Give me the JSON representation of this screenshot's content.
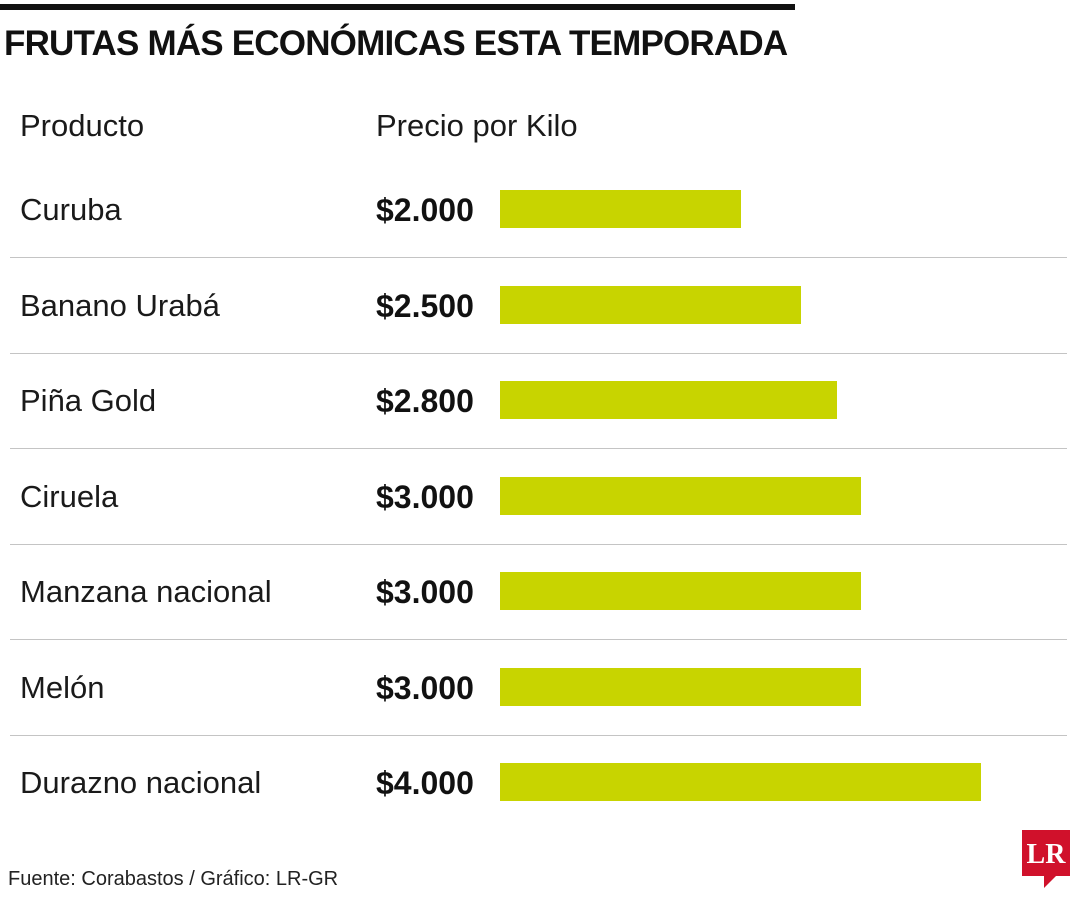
{
  "chart_data": {
    "type": "bar",
    "orientation": "horizontal",
    "title": "FRUTAS MÁS ECONÓMICAS ESTA TEMPORADA",
    "column_headers": [
      "Producto",
      "Precio por Kilo"
    ],
    "categories": [
      "Curuba",
      "Banano Urabá",
      "Piña Gold",
      "Ciruela",
      "Manzana nacional",
      "Melón",
      "Durazno nacional"
    ],
    "values": [
      2000,
      2500,
      2800,
      3000,
      3000,
      3000,
      4000
    ],
    "value_labels": [
      "$2.000",
      "$2.500",
      "$2.800",
      "$3.000",
      "$3.000",
      "$3.000",
      "$4.000"
    ],
    "xlim": [
      0,
      4000
    ],
    "bar_color": "#c8d400",
    "grid": false,
    "source": "Fuente: Corabastos / Gráfico: LR-GR"
  },
  "logo": {
    "text": "LR",
    "color": "#d0112b"
  }
}
